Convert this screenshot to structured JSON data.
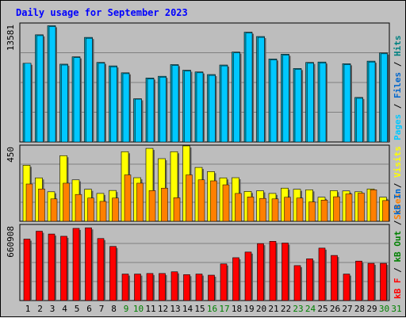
{
  "colors": {
    "background": "#c0c0c0",
    "panel": "#bdbdbd",
    "title": "#0000ff",
    "pages": "#00c8ff",
    "files": "#00a4c0",
    "hits_text": "#008080",
    "visits": "#ffff00",
    "sites": "#ff8000",
    "kb": "#ff0000",
    "kb_in_text": "#008000",
    "kb_out_text": "#0066cc",
    "weekend_day": "#008000",
    "weekday": "#000000"
  },
  "chart_data": {
    "type": "bar",
    "title": "Daily usage for September 2023",
    "categories": [
      "1",
      "2",
      "3",
      "4",
      "5",
      "6",
      "7",
      "8",
      "9",
      "10",
      "11",
      "12",
      "13",
      "14",
      "15",
      "16",
      "17",
      "18",
      "19",
      "20",
      "21",
      "22",
      "23",
      "24",
      "25",
      "26",
      "27",
      "28",
      "29",
      "30",
      "31"
    ],
    "weekend_days": [
      "9",
      "10",
      "16",
      "17",
      "23",
      "24",
      "30",
      "31"
    ],
    "panels": [
      {
        "id": "hits",
        "max_label": "13581",
        "ymax": 13581,
        "series": [
          {
            "name": "Hits",
            "color": "#00a4c0",
            "values": [
              9100,
              12400,
              13450,
              9000,
              9850,
              12100,
              9200,
              8800,
              8000,
              5000,
              7400,
              7600,
              8950,
              8300,
              8100,
              7800,
              8900,
              10400,
              12700,
              12200,
              9600,
              10150,
              8500,
              9200,
              9250,
              null,
              9050,
              5150,
              9350,
              10300
            ]
          },
          {
            "name": "Files",
            "color": "#00c8ff",
            "values": [
              9100,
              12300,
              13350,
              8900,
              9750,
              12000,
              9100,
              8700,
              7900,
              4950,
              7300,
              7500,
              8850,
              8200,
              8000,
              7700,
              8800,
              10300,
              12600,
              12100,
              9500,
              10050,
              8400,
              9100,
              9150,
              null,
              8950,
              5050,
              9250,
              10200
            ]
          },
          {
            "name": "Pages",
            "color": "#00c8ff",
            "values": []
          }
        ]
      },
      {
        "id": "visits",
        "max_label": "450",
        "ymax": 450,
        "series": [
          {
            "name": "Visits",
            "color": "#ffff00",
            "values": [
              338,
              262,
              178,
              396,
              250,
              193,
              168,
              186,
              420,
              263,
              440,
              378,
              420,
              455,
              325,
              300,
              262,
              263,
              180,
              184,
              168,
              200,
              193,
              190,
              145,
              185,
              183,
              178,
              195,
              145
            ]
          },
          {
            "name": "Sites",
            "color": "#ff8000",
            "values": [
              225,
              195,
              135,
              230,
              162,
              140,
              120,
              140,
              280,
              230,
              185,
              200,
              142,
              280,
              250,
              244,
              220,
              168,
              147,
              138,
              135,
              145,
              140,
              117,
              128,
              148,
              165,
              170,
              190,
              125
            ]
          }
        ]
      },
      {
        "id": "kb",
        "max_label": "660908",
        "ymax": 660908,
        "series": [
          {
            "name": "KB F",
            "color": "#ff0000",
            "values": [
              545000,
              615000,
              590000,
              570000,
              640000,
              645000,
              550000,
              480000,
              235000,
              235000,
              240000,
              240000,
              255000,
              230000,
              235000,
              225000,
              325000,
              380000,
              430000,
              505000,
              525000,
              510000,
              310000,
              370000,
              465000,
              400000,
              235000,
              350000,
              330000,
              330000
            ]
          }
        ]
      }
    ],
    "right_axis_labels": {
      "hits": [
        {
          "text": "Pages",
          "color": "#00c8ff"
        },
        {
          "text": " / ",
          "color": "#000000"
        },
        {
          "text": "Files",
          "color": "#0066cc"
        },
        {
          "text": " / ",
          "color": "#000000"
        },
        {
          "text": "Hits",
          "color": "#008080"
        }
      ],
      "visits": [
        {
          "text": "Sites",
          "color": "#ff8000"
        },
        {
          "text": " / ",
          "color": "#000000"
        },
        {
          "text": "Visits",
          "color": "#ffff00"
        }
      ],
      "kb": [
        {
          "text": "kB F",
          "color": "#ff0000"
        },
        {
          "text": " / ",
          "color": "#000000"
        },
        {
          "text": "kB Out",
          "color": "#008000"
        },
        {
          "text": " / ",
          "color": "#000000"
        },
        {
          "text": "kB In",
          "color": "#0066cc"
        }
      ]
    }
  }
}
